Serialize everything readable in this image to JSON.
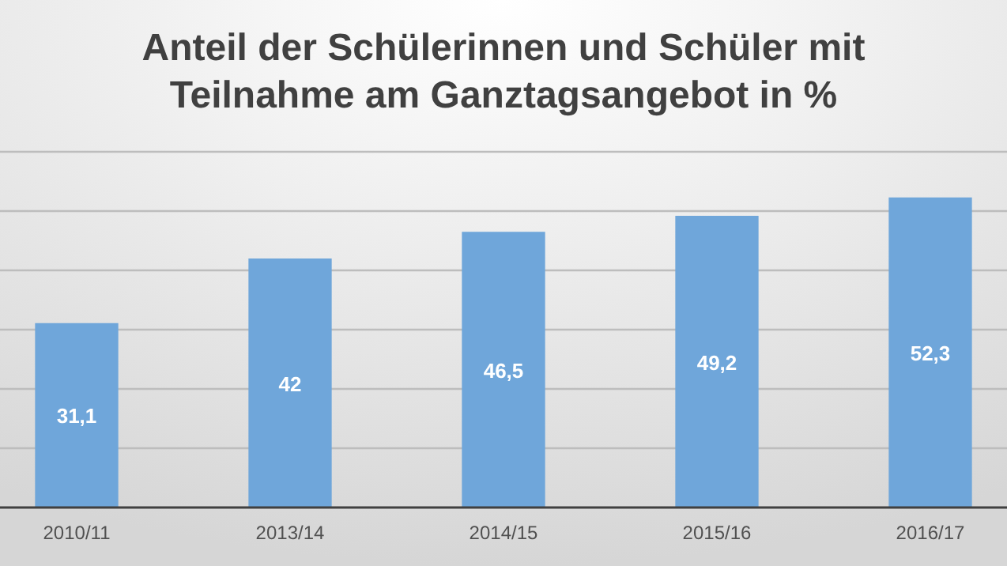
{
  "chart_data": {
    "type": "bar",
    "title": "Anteil der Schülerinnen und Schüler mit Teilnahme am Ganztagsangebot in %",
    "categories": [
      "2010/11",
      "2013/14",
      "2014/15",
      "2015/16",
      "2016/17"
    ],
    "values": [
      31.1,
      42,
      46.5,
      49.2,
      52.3
    ],
    "value_labels": [
      "31,1",
      "42",
      "46,5",
      "49,2",
      "52,3"
    ],
    "color": "#6fa6da",
    "ylim": [
      0,
      60
    ],
    "yticks": [
      {
        "value": 0,
        "label": null
      },
      {
        "value": 10,
        "label": null
      },
      {
        "value": 20,
        "label": null
      },
      {
        "value": 30,
        "label": null
      },
      {
        "value": 40,
        "label": null
      },
      {
        "value": 50,
        "label": null
      },
      {
        "value": 60,
        "label": null
      }
    ],
    "tick_labels": "x",
    "grid": "y"
  }
}
